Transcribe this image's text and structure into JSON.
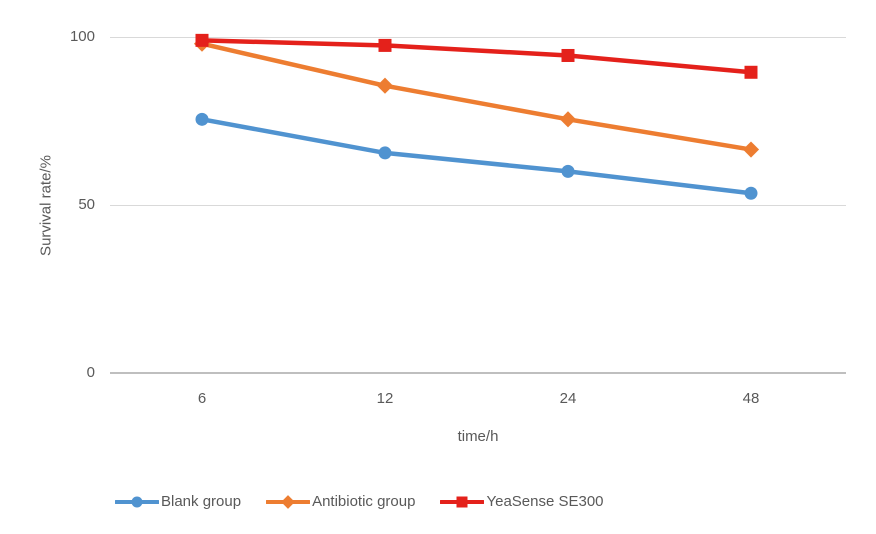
{
  "chart_data": {
    "type": "line",
    "title": "",
    "xlabel": "time/h",
    "ylabel": "Survival rate/%",
    "categories": [
      "6",
      "12",
      "24",
      "48"
    ],
    "yticks": [
      "100",
      "50",
      "0"
    ],
    "ylim": [
      0,
      100
    ],
    "grid": true,
    "legend_position": "bottom",
    "series": [
      {
        "name": "Blank group",
        "marker": "circle",
        "color": "#5093d0",
        "values": [
          75.5,
          65.5,
          60,
          53.5
        ]
      },
      {
        "name": "Antibiotic group",
        "marker": "diamond",
        "color": "#ed7d31",
        "values": [
          98,
          85.5,
          75.5,
          66.5
        ]
      },
      {
        "name": "YeaSense SE300",
        "marker": "square",
        "color": "#e4211b",
        "values": [
          99,
          97.5,
          94.5,
          89.5
        ]
      }
    ],
    "colors": {
      "grid": "#d9d9d9",
      "axis": "#bfbfbf",
      "text": "#595959"
    }
  }
}
